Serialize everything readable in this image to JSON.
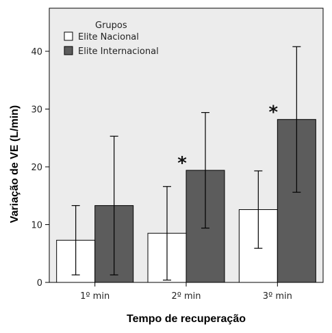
{
  "chart_data": {
    "type": "bar",
    "xlabel": "Tempo de recuperação",
    "ylabel": "Variação de VE (L/min)",
    "categories": [
      "1º min",
      "2º min",
      "3º min"
    ],
    "ylim": [
      0,
      47
    ],
    "yticks": [
      0,
      10,
      20,
      30,
      40
    ],
    "grid": false,
    "legend": {
      "title": "Grupos",
      "placement": "top-left"
    },
    "series": [
      {
        "name": "Elite Nacional",
        "color": "#ffffff",
        "values": [
          7.3,
          8.5,
          12.6
        ],
        "error_low": [
          1.3,
          0.4,
          5.9
        ],
        "error_high": [
          13.3,
          16.6,
          19.3
        ]
      },
      {
        "name": "Elite Internacional",
        "color": "#5c5c5c",
        "values": [
          13.3,
          19.4,
          28.2
        ],
        "error_low": [
          1.3,
          9.4,
          15.6
        ],
        "error_high": [
          25.3,
          29.4,
          40.8
        ]
      }
    ],
    "annotations": [
      {
        "text": "*",
        "category": "2º min"
      },
      {
        "text": "*",
        "category": "3º min"
      }
    ]
  }
}
